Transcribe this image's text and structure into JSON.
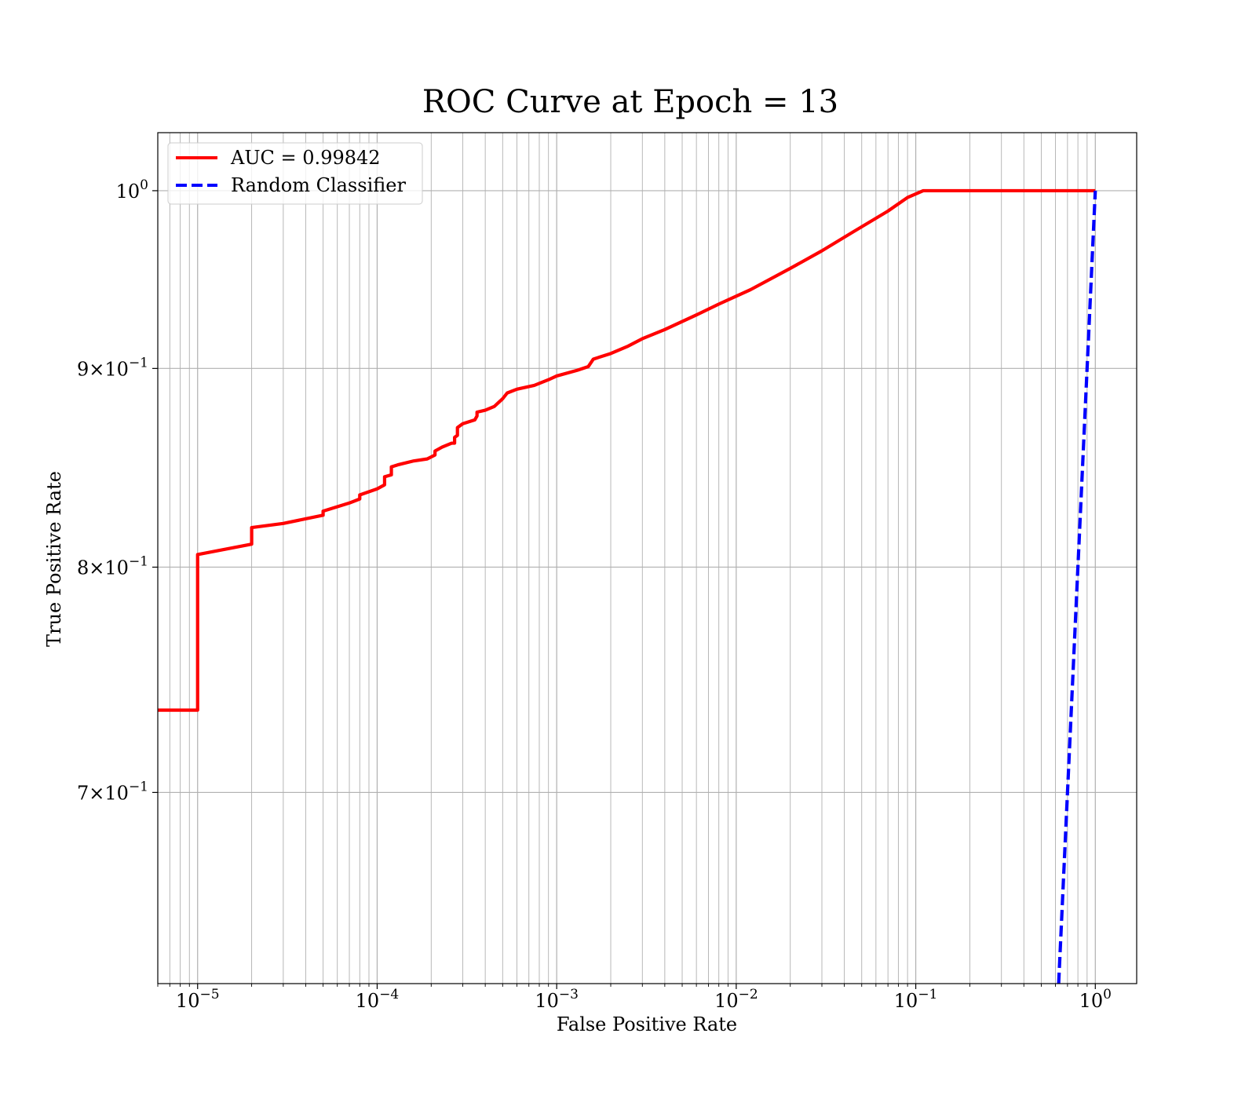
{
  "chart_data": {
    "type": "line",
    "title": "ROC Curve at Epoch = 13",
    "xlabel": "False Positive Rate",
    "ylabel": "True Positive Rate",
    "xscale": "log",
    "yscale": "log",
    "xlim": [
      6e-06,
      1.7
    ],
    "ylim": [
      0.625,
      1.035
    ],
    "grid": true,
    "grid_which": "both",
    "legend_position": "upper-left",
    "x_ticks": [
      {
        "base": "10",
        "exp": "−5",
        "value": 1e-05
      },
      {
        "base": "10",
        "exp": "−4",
        "value": 0.0001
      },
      {
        "base": "10",
        "exp": "−3",
        "value": 0.001
      },
      {
        "base": "10",
        "exp": "−2",
        "value": 0.01
      },
      {
        "base": "10",
        "exp": "−1",
        "value": 0.1
      },
      {
        "base": "10",
        "exp": "0",
        "value": 1
      }
    ],
    "y_ticks": [
      {
        "mant": "",
        "base": "10",
        "exp": "0",
        "value": 1.0
      },
      {
        "mant": "9×",
        "base": "10",
        "exp": "−1",
        "value": 0.9
      },
      {
        "mant": "8×",
        "base": "10",
        "exp": "−1",
        "value": 0.8
      },
      {
        "mant": "7×",
        "base": "10",
        "exp": "−1",
        "value": 0.7
      }
    ],
    "series": [
      {
        "name": "AUC = 0.99842",
        "color": "#ff0000",
        "style": "solid",
        "points": [
          [
            6e-06,
            0.735
          ],
          [
            1e-05,
            0.735
          ],
          [
            1e-05,
            0.806
          ],
          [
            2e-05,
            0.811
          ],
          [
            2e-05,
            0.819
          ],
          [
            3e-05,
            0.821
          ],
          [
            5e-05,
            0.825
          ],
          [
            5e-05,
            0.827
          ],
          [
            7e-05,
            0.831
          ],
          [
            8e-05,
            0.833
          ],
          [
            8e-05,
            0.835
          ],
          [
            0.0001,
            0.838
          ],
          [
            0.00011,
            0.84
          ],
          [
            0.00011,
            0.844
          ],
          [
            0.00012,
            0.845
          ],
          [
            0.00012,
            0.849
          ],
          [
            0.00013,
            0.85
          ],
          [
            0.00016,
            0.852
          ],
          [
            0.00019,
            0.853
          ],
          [
            0.00021,
            0.855
          ],
          [
            0.00021,
            0.857
          ],
          [
            0.00023,
            0.859
          ],
          [
            0.00026,
            0.861
          ],
          [
            0.00027,
            0.861
          ],
          [
            0.00027,
            0.864
          ],
          [
            0.00028,
            0.865
          ],
          [
            0.00028,
            0.869
          ],
          [
            0.0003,
            0.871
          ],
          [
            0.00035,
            0.873
          ],
          [
            0.00036,
            0.875
          ],
          [
            0.00036,
            0.877
          ],
          [
            0.0004,
            0.878
          ],
          [
            0.00045,
            0.88
          ],
          [
            0.0005,
            0.884
          ],
          [
            0.00053,
            0.887
          ],
          [
            0.0006,
            0.889
          ],
          [
            0.00075,
            0.891
          ],
          [
            0.0009,
            0.894
          ],
          [
            0.001,
            0.896
          ],
          [
            0.0013,
            0.899
          ],
          [
            0.0015,
            0.901
          ],
          [
            0.0016,
            0.905
          ],
          [
            0.002,
            0.908
          ],
          [
            0.0025,
            0.912
          ],
          [
            0.003,
            0.916
          ],
          [
            0.004,
            0.921
          ],
          [
            0.006,
            0.929
          ],
          [
            0.008,
            0.935
          ],
          [
            0.012,
            0.943
          ],
          [
            0.02,
            0.955
          ],
          [
            0.03,
            0.965
          ],
          [
            0.045,
            0.976
          ],
          [
            0.07,
            0.988
          ],
          [
            0.09,
            0.996
          ],
          [
            0.11,
            1.0
          ],
          [
            1.0,
            1.0
          ]
        ]
      },
      {
        "name": "Random Classifier",
        "color": "#0000ff",
        "style": "dashed",
        "points": [
          [
            0.625,
            0.625
          ],
          [
            1.0,
            1.0
          ]
        ]
      }
    ]
  }
}
